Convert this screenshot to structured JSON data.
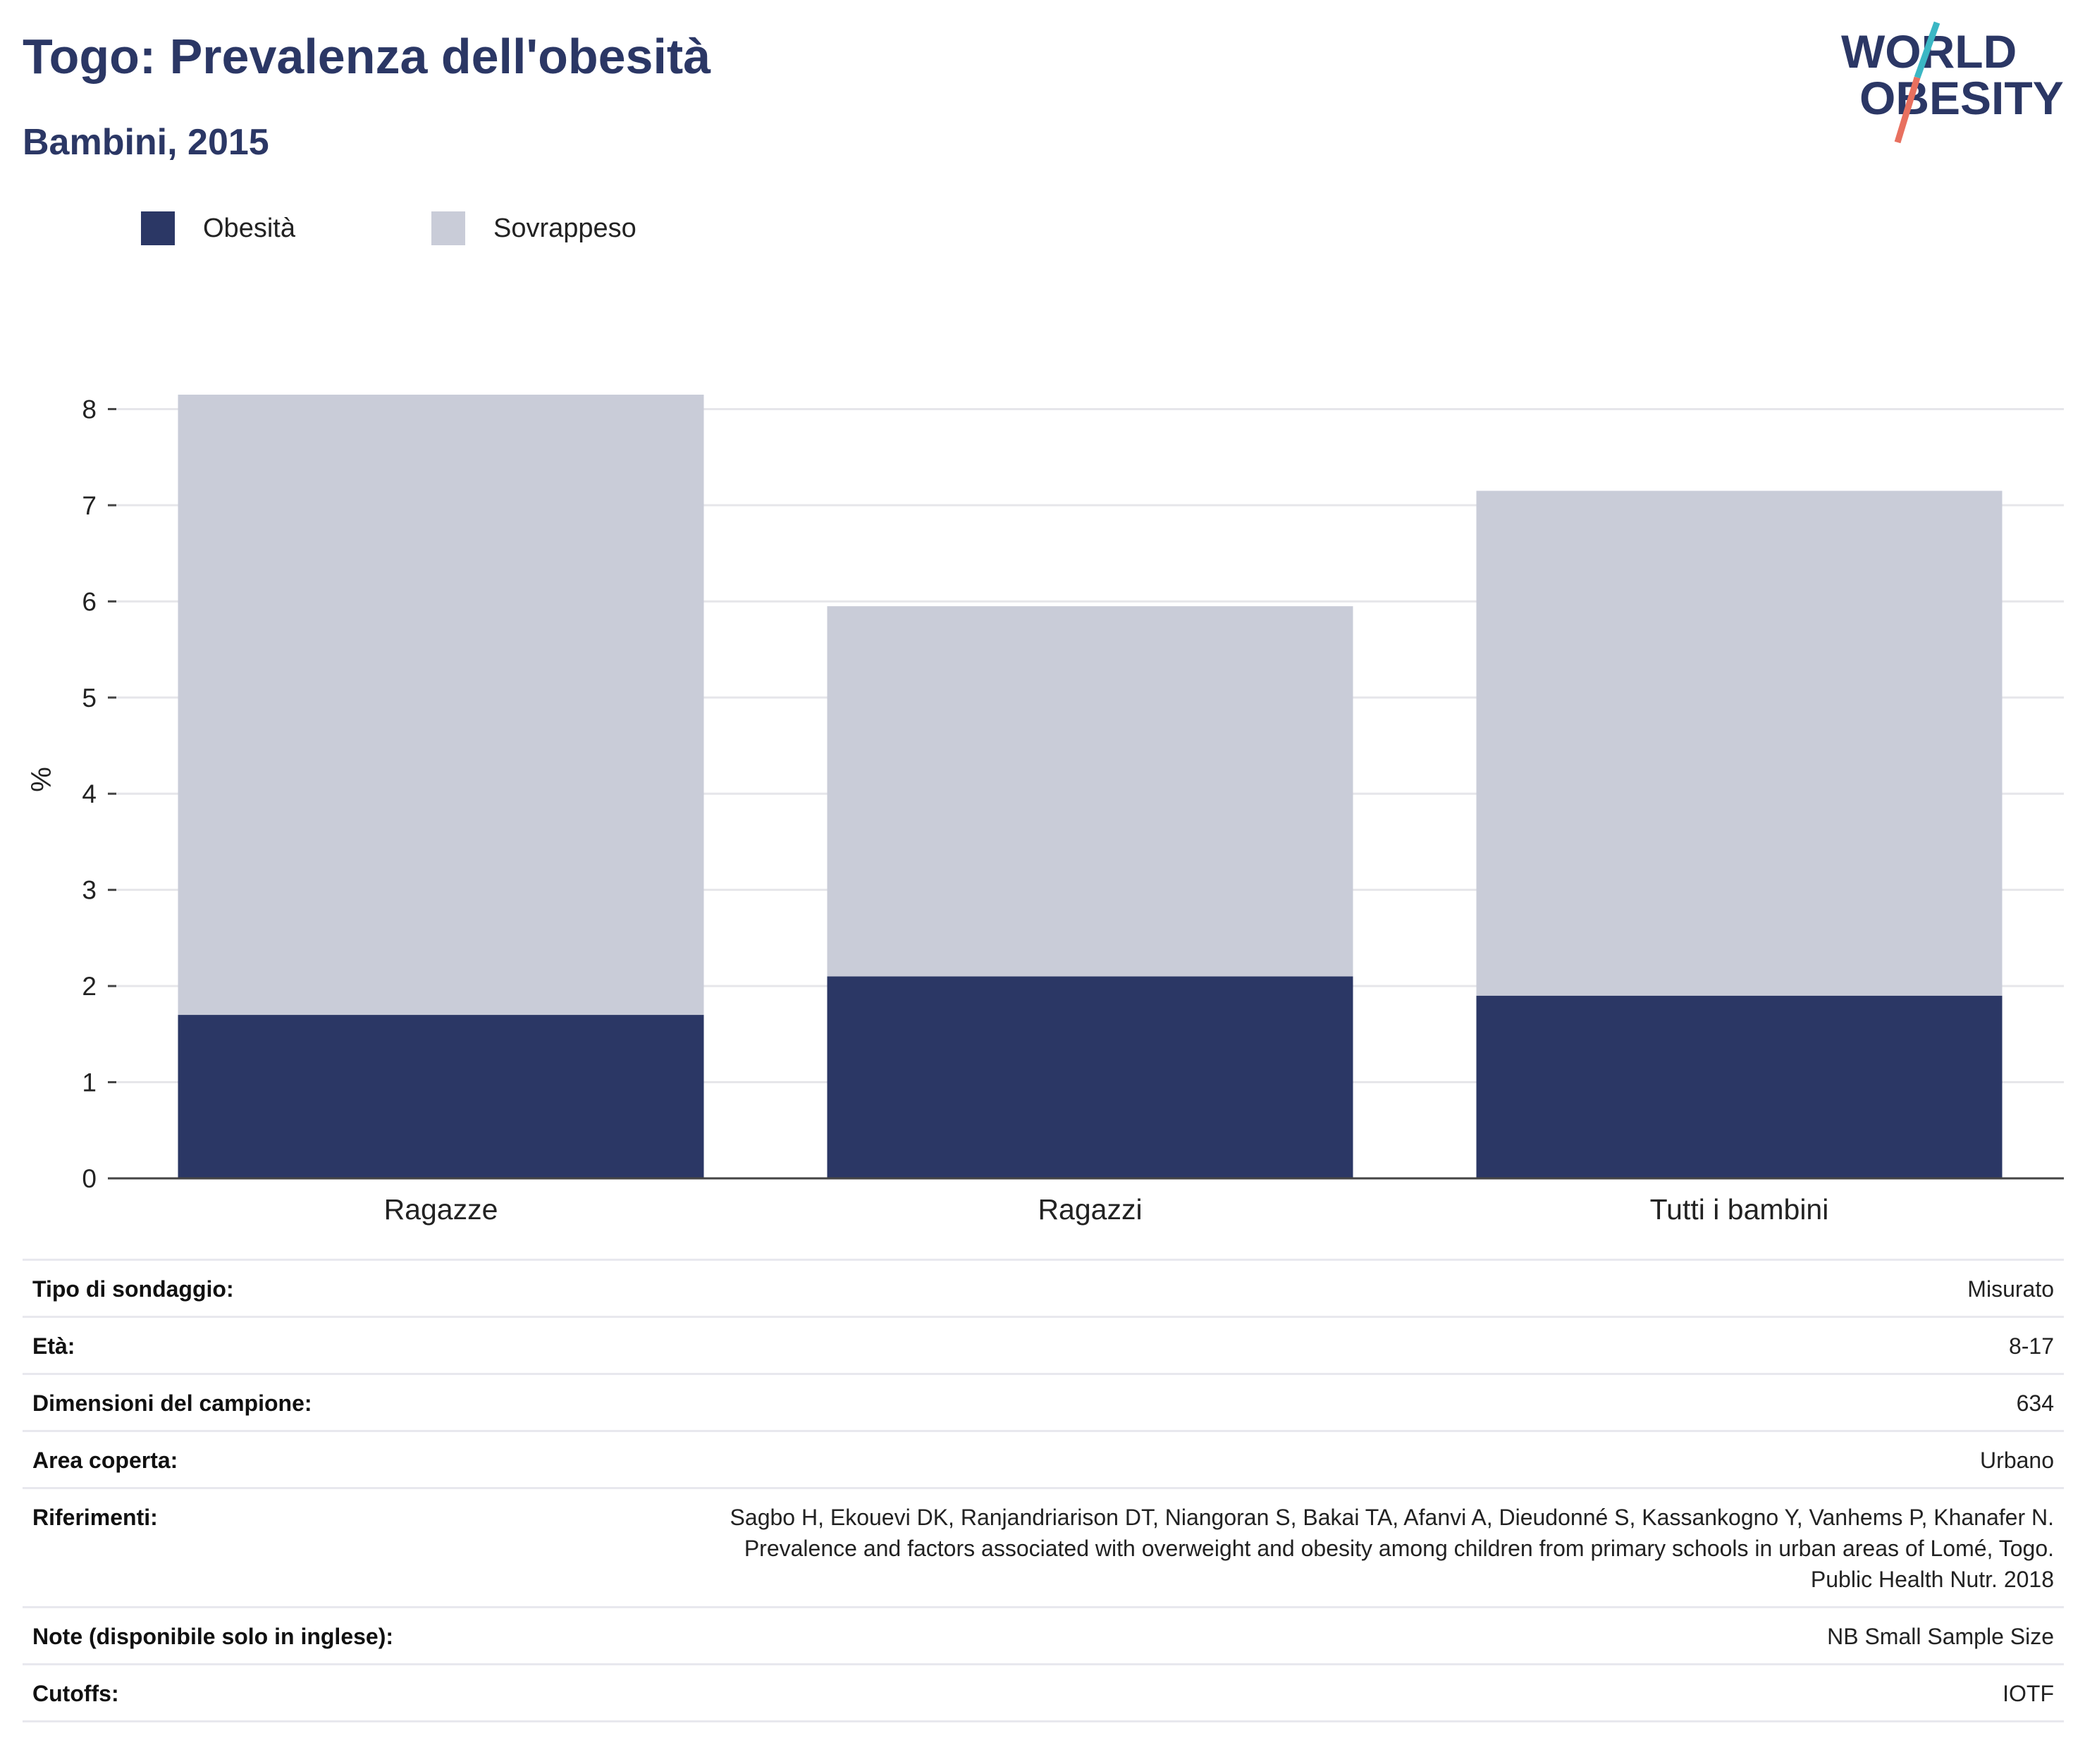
{
  "header": {
    "title": "Togo: Prevalenza dell'obesità",
    "subtitle": "Bambini, 2015"
  },
  "logo": {
    "line1": "WORLD",
    "line2": "OBESITY",
    "colors": {
      "text": "#2b3765",
      "slash_top": "#3bb7c4",
      "slash_bottom": "#e8705f"
    }
  },
  "colors": {
    "obesity": "#2b3765",
    "overweight": "#c9ccd8",
    "grid": "#e6e6ea",
    "axis": "#444444",
    "text": "#222222"
  },
  "chart_data": {
    "type": "bar",
    "stacked": true,
    "categories": [
      "Ragazze",
      "Ragazzi",
      "Tutti i bambini"
    ],
    "series": [
      {
        "name": "Obesità",
        "values": [
          1.7,
          2.1,
          1.9
        ],
        "color": "#2b3765"
      },
      {
        "name": "Sovrappeso",
        "values": [
          6.45,
          3.85,
          5.25
        ],
        "color": "#c9ccd8"
      }
    ],
    "ylabel": "%",
    "xlabel": "",
    "ylim": [
      0,
      8.15
    ],
    "yticks": [
      0,
      1,
      2,
      3,
      4,
      5,
      6,
      7,
      8
    ],
    "grid": true,
    "legend_position": "top-left"
  },
  "info": {
    "rows": [
      {
        "label": "Tipo di sondaggio:",
        "value": "Misurato"
      },
      {
        "label": "Età:",
        "value": "8-17"
      },
      {
        "label": "Dimensioni del campione:",
        "value": "634"
      },
      {
        "label": "Area coperta:",
        "value": "Urbano"
      },
      {
        "label": "Riferimenti:",
        "value": "Sagbo H, Ekouevi DK, Ranjandriarison DT, Niangoran S, Bakai TA, Afanvi A, Dieudonné S, Kassankogno Y, Vanhems P, Khanafer N.\nPrevalence and factors associated with overweight and obesity among children from primary schools in urban areas of Lomé, Togo.\nPublic Health Nutr. 2018"
      },
      {
        "label": "Note (disponibile solo in inglese):",
        "value": "NB Small Sample Size"
      },
      {
        "label": "Cutoffs:",
        "value": "IOTF"
      }
    ]
  }
}
